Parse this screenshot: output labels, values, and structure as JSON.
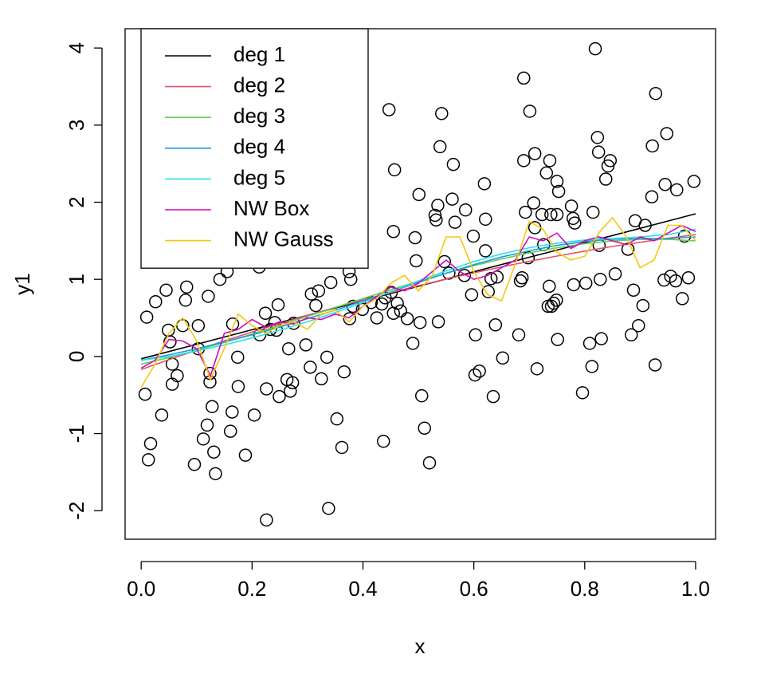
{
  "chart_data": {
    "type": "scatter",
    "x_label": "x",
    "y_label": "y1",
    "xlim": [
      -0.029,
      1.036
    ],
    "ylim": [
      -2.37,
      4.25
    ],
    "xticks": [
      {
        "value": 0,
        "label": "0.0"
      },
      0.2,
      0.4,
      0.6,
      0.8,
      {
        "value": 1,
        "label": "1.0"
      }
    ],
    "yticks": [
      -2,
      -1,
      0,
      1,
      2,
      3,
      4
    ],
    "legend": "topleft",
    "points": {
      "color": "#000000",
      "x": [
        0.007,
        0.01,
        0.013,
        0.017,
        0.026,
        0.037,
        0.045,
        0.049,
        0.052,
        0.056,
        0.056,
        0.065,
        0.075,
        0.08,
        0.082,
        0.096,
        0.103,
        0.103,
        0.112,
        0.119,
        0.121,
        0.124,
        0.124,
        0.128,
        0.131,
        0.134,
        0.142,
        0.155,
        0.161,
        0.164,
        0.165,
        0.174,
        0.175,
        0.188,
        0.204,
        0.213,
        0.214,
        0.224,
        0.226,
        0.226,
        0.233,
        0.241,
        0.244,
        0.247,
        0.249,
        0.263,
        0.266,
        0.269,
        0.273,
        0.275,
        0.297,
        0.305,
        0.307,
        0.315,
        0.32,
        0.325,
        0.335,
        0.338,
        0.342,
        0.353,
        0.362,
        0.366,
        0.375,
        0.376,
        0.378,
        0.382,
        0.399,
        0.415,
        0.425,
        0.434,
        0.437,
        0.44,
        0.447,
        0.451,
        0.455,
        0.455,
        0.457,
        0.462,
        0.468,
        0.48,
        0.49,
        0.494,
        0.496,
        0.501,
        0.503,
        0.506,
        0.511,
        0.52,
        0.53,
        0.532,
        0.535,
        0.536,
        0.539,
        0.542,
        0.547,
        0.555,
        0.561,
        0.563,
        0.566,
        0.583,
        0.585,
        0.596,
        0.599,
        0.602,
        0.603,
        0.61,
        0.619,
        0.621,
        0.621,
        0.626,
        0.631,
        0.635,
        0.639,
        0.642,
        0.652,
        0.681,
        0.684,
        0.687,
        0.69,
        0.69,
        0.693,
        0.698,
        0.701,
        0.708,
        0.71,
        0.71,
        0.714,
        0.723,
        0.726,
        0.731,
        0.734,
        0.736,
        0.737,
        0.739,
        0.74,
        0.744,
        0.749,
        0.75,
        0.75,
        0.751,
        0.753,
        0.776,
        0.779,
        0.78,
        0.782,
        0.796,
        0.802,
        0.809,
        0.813,
        0.815,
        0.819,
        0.823,
        0.825,
        0.826,
        0.828,
        0.83,
        0.838,
        0.842,
        0.846,
        0.855,
        0.878,
        0.884,
        0.888,
        0.891,
        0.897,
        0.905,
        0.909,
        0.921,
        0.922,
        0.927,
        0.928,
        0.943,
        0.945,
        0.948,
        0.955,
        0.964,
        0.966,
        0.976,
        0.98,
        0.987,
        0.997
      ],
      "values": [
        -0.49,
        0.51,
        -1.34,
        -1.13,
        0.71,
        -0.76,
        0.86,
        0.34,
        0.19,
        -0.1,
        -0.36,
        -0.25,
        0.4,
        0.73,
        0.9,
        -1.4,
        0.4,
        0.1,
        -1.07,
        -0.89,
        0.78,
        -0.22,
        -0.33,
        -0.65,
        -1.24,
        -1.52,
        1.0,
        1.1,
        -0.97,
        -0.72,
        0.42,
        -0.01,
        -0.39,
        -1.28,
        -0.76,
        1.16,
        0.28,
        0.56,
        -0.42,
        -2.12,
        0.35,
        0.44,
        0.34,
        0.67,
        -0.52,
        -0.3,
        0.1,
        -0.45,
        -0.34,
        0.43,
        0.15,
        -0.14,
        0.81,
        0.66,
        0.85,
        -0.29,
        -0.01,
        -1.97,
        0.96,
        -0.81,
        -1.18,
        -0.2,
        1.1,
        0.49,
        1.0,
        0.65,
        0.61,
        0.7,
        0.5,
        0.68,
        -1.1,
        0.76,
        3.2,
        0.83,
        1.62,
        0.56,
        2.42,
        0.69,
        0.59,
        0.49,
        0.17,
        1.54,
        1.24,
        2.1,
        0.44,
        -0.51,
        -0.93,
        -1.38,
        1.83,
        1.77,
        1.96,
        0.45,
        2.72,
        3.15,
        1.23,
        1.08,
        2.04,
        2.49,
        1.74,
        1.05,
        1.9,
        0.8,
        1.56,
        -0.24,
        0.28,
        -0.19,
        2.24,
        1.78,
        1.37,
        0.84,
        1.01,
        -0.52,
        0.41,
        1.03,
        -0.02,
        0.28,
        0.98,
        1.02,
        3.61,
        2.54,
        1.87,
        1.28,
        3.18,
        1.99,
        2.63,
        1.67,
        -0.16,
        1.84,
        1.45,
        2.38,
        0.65,
        0.91,
        2.54,
        1.84,
        0.65,
        0.69,
        0.73,
        2.27,
        1.84,
        0.22,
        2.14,
        1.95,
        1.79,
        0.93,
        1.73,
        -0.47,
        0.95,
        0.17,
        -0.13,
        1.87,
        3.99,
        2.84,
        2.65,
        1.44,
        1.0,
        0.23,
        2.3,
        2.47,
        2.54,
        1.07,
        1.39,
        0.28,
        0.86,
        1.76,
        0.4,
        0.66,
        1.7,
        2.07,
        2.73,
        -0.11,
        3.41,
        0.99,
        2.23,
        2.89,
        1.04,
        0.98,
        2.16,
        0.75,
        1.56,
        1.02,
        2.27
      ]
    },
    "series": [
      {
        "name": "deg 1",
        "color": "#000000",
        "x": [
          0,
          0.05,
          0.1,
          0.15,
          0.2,
          0.25,
          0.3,
          0.35,
          0.4,
          0.45,
          0.5,
          0.55,
          0.6,
          0.65,
          0.7,
          0.75,
          0.8,
          0.85,
          0.9,
          0.95,
          1
        ],
        "values": [
          -0.03,
          0.064,
          0.158,
          0.252,
          0.346,
          0.44,
          0.534,
          0.628,
          0.722,
          0.816,
          0.91,
          1.004,
          1.098,
          1.192,
          1.286,
          1.38,
          1.474,
          1.568,
          1.662,
          1.756,
          1.85
        ]
      },
      {
        "name": "deg 2",
        "color": "#DF536B",
        "x": [
          0,
          0.05,
          0.1,
          0.15,
          0.2,
          0.25,
          0.3,
          0.35,
          0.4,
          0.45,
          0.5,
          0.55,
          0.6,
          0.65,
          0.7,
          0.75,
          0.8,
          0.85,
          0.9,
          0.95,
          1
        ],
        "values": [
          -0.17,
          -0.042,
          0.081,
          0.201,
          0.316,
          0.427,
          0.534,
          0.636,
          0.734,
          0.828,
          0.918,
          1.003,
          1.084,
          1.161,
          1.233,
          1.302,
          1.366,
          1.426,
          1.481,
          1.533,
          1.58
        ]
      },
      {
        "name": "deg 3",
        "color": "#61D04F",
        "x": [
          0,
          0.05,
          0.1,
          0.15,
          0.2,
          0.25,
          0.3,
          0.35,
          0.4,
          0.45,
          0.5,
          0.55,
          0.6,
          0.65,
          0.7,
          0.75,
          0.8,
          0.85,
          0.9,
          0.95,
          1
        ],
        "values": [
          -0.1,
          -0.015,
          0.08,
          0.182,
          0.29,
          0.403,
          0.519,
          0.635,
          0.751,
          0.865,
          0.975,
          1.08,
          1.177,
          1.265,
          1.343,
          1.409,
          1.462,
          1.498,
          1.518,
          1.519,
          1.5
        ]
      },
      {
        "name": "deg 4",
        "color": "#2297E6",
        "x": [
          0,
          0.05,
          0.1,
          0.15,
          0.2,
          0.25,
          0.3,
          0.35,
          0.4,
          0.45,
          0.5,
          0.55,
          0.6,
          0.65,
          0.7,
          0.75,
          0.8,
          0.85,
          0.9,
          0.95,
          1
        ],
        "values": [
          -0.05,
          0.02,
          0.1,
          0.19,
          0.28,
          0.38,
          0.49,
          0.6,
          0.72,
          0.84,
          0.96,
          1.08,
          1.19,
          1.29,
          1.37,
          1.44,
          1.49,
          1.52,
          1.53,
          1.53,
          1.55
        ]
      },
      {
        "name": "deg 5",
        "color": "#28E2E5",
        "x": [
          0,
          0.05,
          0.1,
          0.15,
          0.2,
          0.25,
          0.3,
          0.35,
          0.4,
          0.45,
          0.5,
          0.55,
          0.6,
          0.65,
          0.7,
          0.75,
          0.8,
          0.85,
          0.9,
          0.95,
          1
        ],
        "values": [
          -0.05,
          0.0,
          0.07,
          0.15,
          0.24,
          0.34,
          0.45,
          0.57,
          0.7,
          0.84,
          0.98,
          1.11,
          1.23,
          1.33,
          1.41,
          1.47,
          1.51,
          1.53,
          1.55,
          1.58,
          1.65
        ]
      },
      {
        "name": "NW Box",
        "color": "#CD0BBC",
        "x": [
          0,
          0.025,
          0.05,
          0.075,
          0.1,
          0.125,
          0.15,
          0.175,
          0.2,
          0.225,
          0.25,
          0.275,
          0.3,
          0.325,
          0.35,
          0.375,
          0.4,
          0.425,
          0.45,
          0.475,
          0.5,
          0.525,
          0.55,
          0.575,
          0.6,
          0.625,
          0.65,
          0.675,
          0.7,
          0.725,
          0.75,
          0.775,
          0.8,
          0.825,
          0.85,
          0.875,
          0.9,
          0.925,
          0.95,
          0.975,
          1
        ],
        "values": [
          -0.15,
          -0.05,
          0.22,
          0.2,
          0.1,
          -0.25,
          0.3,
          0.35,
          0.48,
          0.38,
          0.45,
          0.42,
          0.5,
          0.48,
          0.55,
          0.5,
          0.65,
          0.78,
          0.9,
          0.85,
          0.95,
          1.1,
          1.25,
          1.1,
          1.0,
          1.05,
          1.15,
          1.25,
          1.55,
          1.5,
          1.6,
          1.4,
          1.5,
          1.55,
          1.5,
          1.45,
          1.55,
          1.5,
          1.6,
          1.7,
          1.62
        ]
      },
      {
        "name": "NW Gauss",
        "color": "#F5C710",
        "x": [
          0,
          0.025,
          0.05,
          0.075,
          0.1,
          0.125,
          0.15,
          0.175,
          0.2,
          0.225,
          0.25,
          0.275,
          0.3,
          0.325,
          0.35,
          0.375,
          0.4,
          0.425,
          0.45,
          0.475,
          0.5,
          0.525,
          0.55,
          0.575,
          0.6,
          0.625,
          0.65,
          0.675,
          0.7,
          0.725,
          0.75,
          0.775,
          0.8,
          0.825,
          0.85,
          0.875,
          0.9,
          0.925,
          0.95,
          0.975,
          1
        ],
        "values": [
          -0.4,
          -0.1,
          0.3,
          0.5,
          0.2,
          -0.3,
          0.1,
          0.55,
          0.4,
          0.3,
          0.4,
          0.45,
          0.35,
          0.55,
          0.6,
          0.45,
          0.65,
          0.75,
          0.95,
          1.05,
          0.85,
          1.05,
          1.55,
          1.55,
          1.1,
          0.8,
          0.72,
          1.2,
          1.75,
          1.65,
          1.35,
          1.25,
          1.3,
          1.6,
          1.8,
          1.55,
          1.15,
          1.25,
          1.7,
          1.7,
          1.5
        ]
      }
    ]
  }
}
